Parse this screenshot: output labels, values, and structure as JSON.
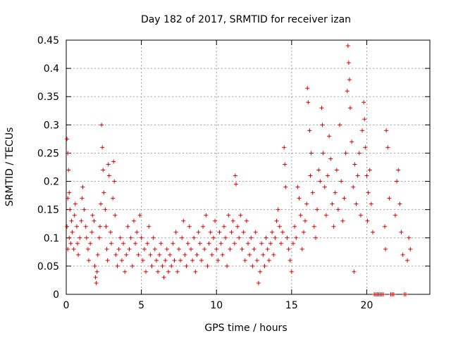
{
  "chart_data": {
    "type": "scatter",
    "title": "Day 182 of 2017, SRMTID for receiver izan",
    "xlabel": "GPS time / hours",
    "ylabel": "SRMTID / TECUs",
    "xlim": [
      0,
      24.2
    ],
    "ylim": [
      0,
      0.45
    ],
    "xticks": [
      0,
      5,
      10,
      15,
      20
    ],
    "xtick_labels": [
      "0",
      "5",
      "10",
      "15",
      "20"
    ],
    "yticks": [
      0,
      0.05,
      0.1,
      0.15,
      0.2,
      0.25,
      0.3,
      0.35,
      0.4,
      0.45
    ],
    "ytick_labels": [
      "0",
      "0.05",
      "0.1",
      "0.15",
      "0.2",
      "0.25",
      "0.3",
      "0.35",
      "0.4",
      "0.45"
    ],
    "grid": true,
    "marker": "+",
    "color": "#e00000",
    "series": [
      {
        "name": "",
        "points": [
          [
            0.05,
            0.275
          ],
          [
            0.1,
            0.25
          ],
          [
            0.15,
            0.22
          ],
          [
            0.1,
            0.17
          ],
          [
            0.2,
            0.18
          ],
          [
            0.25,
            0.15
          ],
          [
            0.05,
            0.12
          ],
          [
            0.2,
            0.1
          ],
          [
            0.3,
            0.09
          ],
          [
            0.1,
            0.08
          ],
          [
            0.35,
            0.13
          ],
          [
            0.4,
            0.11
          ],
          [
            0.5,
            0.08
          ],
          [
            0.55,
            0.14
          ],
          [
            0.6,
            0.16
          ],
          [
            0.7,
            0.12
          ],
          [
            0.75,
            0.09
          ],
          [
            0.8,
            0.07
          ],
          [
            0.9,
            0.1
          ],
          [
            1.0,
            0.13
          ],
          [
            1.05,
            0.17
          ],
          [
            1.1,
            0.19
          ],
          [
            1.2,
            0.15
          ],
          [
            1.3,
            0.12
          ],
          [
            1.35,
            0.1
          ],
          [
            1.45,
            0.08
          ],
          [
            1.5,
            0.06
          ],
          [
            1.6,
            0.09
          ],
          [
            1.7,
            0.11
          ],
          [
            1.75,
            0.14
          ],
          [
            1.85,
            0.13
          ],
          [
            1.9,
            0.05
          ],
          [
            1.95,
            0.03
          ],
          [
            2.0,
            0.02
          ],
          [
            2.05,
            0.04
          ],
          [
            2.1,
            0.07
          ],
          [
            2.2,
            0.1
          ],
          [
            2.25,
            0.12
          ],
          [
            2.3,
            0.16
          ],
          [
            2.35,
            0.3
          ],
          [
            2.4,
            0.26
          ],
          [
            2.45,
            0.22
          ],
          [
            2.5,
            0.18
          ],
          [
            2.6,
            0.15
          ],
          [
            2.65,
            0.12
          ],
          [
            2.7,
            0.08
          ],
          [
            2.75,
            0.06
          ],
          [
            2.8,
            0.23
          ],
          [
            2.85,
            0.21
          ],
          [
            2.95,
            0.11
          ],
          [
            3.0,
            0.09
          ],
          [
            3.1,
            0.17
          ],
          [
            3.15,
            0.235
          ],
          [
            3.2,
            0.2
          ],
          [
            3.25,
            0.14
          ],
          [
            3.3,
            0.07
          ],
          [
            3.4,
            0.05
          ],
          [
            3.5,
            0.08
          ],
          [
            3.6,
            0.1
          ],
          [
            3.7,
            0.06
          ],
          [
            3.8,
            0.09
          ],
          [
            3.9,
            0.04
          ],
          [
            4.0,
            0.07
          ],
          [
            4.1,
            0.12
          ],
          [
            4.2,
            0.08
          ],
          [
            4.3,
            0.1
          ],
          [
            4.4,
            0.05
          ],
          [
            4.5,
            0.13
          ],
          [
            4.6,
            0.09
          ],
          [
            4.7,
            0.11
          ],
          [
            4.8,
            0.07
          ],
          [
            4.9,
            0.14
          ],
          [
            5.0,
            0.1
          ],
          [
            5.1,
            0.06
          ],
          [
            5.2,
            0.08
          ],
          [
            5.3,
            0.04
          ],
          [
            5.4,
            0.09
          ],
          [
            5.5,
            0.12
          ],
          [
            5.6,
            0.07
          ],
          [
            5.7,
            0.05
          ],
          [
            5.8,
            0.1
          ],
          [
            5.9,
            0.08
          ],
          [
            6.0,
            0.06
          ],
          [
            6.1,
            0.04
          ],
          [
            6.2,
            0.07
          ],
          [
            6.3,
            0.09
          ],
          [
            6.4,
            0.05
          ],
          [
            6.5,
            0.03
          ],
          [
            6.6,
            0.06
          ],
          [
            6.7,
            0.08
          ],
          [
            6.8,
            0.04
          ],
          [
            6.9,
            0.07
          ],
          [
            7.0,
            0.05
          ],
          [
            7.1,
            0.09
          ],
          [
            7.2,
            0.06
          ],
          [
            7.3,
            0.11
          ],
          [
            7.4,
            0.04
          ],
          [
            7.5,
            0.08
          ],
          [
            7.6,
            0.06
          ],
          [
            7.7,
            0.1
          ],
          [
            7.8,
            0.13
          ],
          [
            7.9,
            0.07
          ],
          [
            8.0,
            0.05
          ],
          [
            8.1,
            0.09
          ],
          [
            8.2,
            0.12
          ],
          [
            8.3,
            0.08
          ],
          [
            8.4,
            0.06
          ],
          [
            8.5,
            0.1
          ],
          [
            8.6,
            0.04
          ],
          [
            8.7,
            0.07
          ],
          [
            8.8,
            0.11
          ],
          [
            8.9,
            0.09
          ],
          [
            9.0,
            0.06
          ],
          [
            9.1,
            0.12
          ],
          [
            9.2,
            0.08
          ],
          [
            9.3,
            0.14
          ],
          [
            9.4,
            0.05
          ],
          [
            9.5,
            0.09
          ],
          [
            9.6,
            0.11
          ],
          [
            9.7,
            0.07
          ],
          [
            9.8,
            0.1
          ],
          [
            9.9,
            0.13
          ],
          [
            10.0,
            0.08
          ],
          [
            10.1,
            0.06
          ],
          [
            10.2,
            0.11
          ],
          [
            10.3,
            0.09
          ],
          [
            10.4,
            0.07
          ],
          [
            10.5,
            0.12
          ],
          [
            10.6,
            0.1
          ],
          [
            10.7,
            0.05
          ],
          [
            10.8,
            0.14
          ],
          [
            10.9,
            0.08
          ],
          [
            11.0,
            0.11
          ],
          [
            11.1,
            0.13
          ],
          [
            11.2,
            0.09
          ],
          [
            11.25,
            0.21
          ],
          [
            11.3,
            0.195
          ],
          [
            11.4,
            0.12
          ],
          [
            11.5,
            0.1
          ],
          [
            11.6,
            0.14
          ],
          [
            11.7,
            0.08
          ],
          [
            11.8,
            0.11
          ],
          [
            11.9,
            0.06
          ],
          [
            12.0,
            0.13
          ],
          [
            12.1,
            0.09
          ],
          [
            12.2,
            0.07
          ],
          [
            12.3,
            0.1
          ],
          [
            12.4,
            0.05
          ],
          [
            12.5,
            0.08
          ],
          [
            12.6,
            0.11
          ],
          [
            12.7,
            0.06
          ],
          [
            12.8,
            0.02
          ],
          [
            12.9,
            0.04
          ],
          [
            13.0,
            0.09
          ],
          [
            13.1,
            0.07
          ],
          [
            13.2,
            0.05
          ],
          [
            13.3,
            0.1
          ],
          [
            13.4,
            0.08
          ],
          [
            13.5,
            0.06
          ],
          [
            13.6,
            0.09
          ],
          [
            13.7,
            0.11
          ],
          [
            13.8,
            0.07
          ],
          [
            13.9,
            0.1
          ],
          [
            14.0,
            0.13
          ],
          [
            14.1,
            0.15
          ],
          [
            14.2,
            0.12
          ],
          [
            14.3,
            0.09
          ],
          [
            14.4,
            0.11
          ],
          [
            14.5,
            0.26
          ],
          [
            14.55,
            0.23
          ],
          [
            14.6,
            0.19
          ],
          [
            14.7,
            0.1
          ],
          [
            14.8,
            0.08
          ],
          [
            14.9,
            0.06
          ],
          [
            15.0,
            0.04
          ],
          [
            15.1,
            0.09
          ],
          [
            15.2,
            0.12
          ],
          [
            15.3,
            0.1
          ],
          [
            15.4,
            0.19
          ],
          [
            15.5,
            0.17
          ],
          [
            15.6,
            0.14
          ],
          [
            15.7,
            0.08
          ],
          [
            15.8,
            0.11
          ],
          [
            15.9,
            0.13
          ],
          [
            16.0,
            0.16
          ],
          [
            16.05,
            0.365
          ],
          [
            16.1,
            0.34
          ],
          [
            16.2,
            0.29
          ],
          [
            16.25,
            0.21
          ],
          [
            16.3,
            0.25
          ],
          [
            16.4,
            0.18
          ],
          [
            16.5,
            0.12
          ],
          [
            16.6,
            0.1
          ],
          [
            16.7,
            0.15
          ],
          [
            16.8,
            0.22
          ],
          [
            16.9,
            0.2
          ],
          [
            17.0,
            0.33
          ],
          [
            17.05,
            0.3
          ],
          [
            17.1,
            0.25
          ],
          [
            17.2,
            0.19
          ],
          [
            17.3,
            0.14
          ],
          [
            17.4,
            0.21
          ],
          [
            17.5,
            0.28
          ],
          [
            17.6,
            0.24
          ],
          [
            17.7,
            0.16
          ],
          [
            17.8,
            0.12
          ],
          [
            17.9,
            0.18
          ],
          [
            18.0,
            0.22
          ],
          [
            18.1,
            0.15
          ],
          [
            18.2,
            0.3
          ],
          [
            18.3,
            0.2
          ],
          [
            18.4,
            0.13
          ],
          [
            18.5,
            0.17
          ],
          [
            18.6,
            0.25
          ],
          [
            18.7,
            0.36
          ],
          [
            18.75,
            0.44
          ],
          [
            18.8,
            0.41
          ],
          [
            18.85,
            0.38
          ],
          [
            18.9,
            0.33
          ],
          [
            19.0,
            0.27
          ],
          [
            19.1,
            0.19
          ],
          [
            19.15,
            0.04
          ],
          [
            19.2,
            0.23
          ],
          [
            19.3,
            0.16
          ],
          [
            19.4,
            0.21
          ],
          [
            19.5,
            0.25
          ],
          [
            19.6,
            0.14
          ],
          [
            19.7,
            0.29
          ],
          [
            19.8,
            0.34
          ],
          [
            19.85,
            0.31
          ],
          [
            19.9,
            0.26
          ],
          [
            20.0,
            0.21
          ],
          [
            20.05,
            0.13
          ],
          [
            20.1,
            0.18
          ],
          [
            20.2,
            0.22
          ],
          [
            20.3,
            0.16
          ],
          [
            20.4,
            0.11
          ],
          [
            20.5,
            0.0
          ],
          [
            20.6,
            0.0
          ],
          [
            20.7,
            0.0
          ],
          [
            20.8,
            0.0
          ],
          [
            20.9,
            0.0
          ],
          [
            21.0,
            0.0
          ],
          [
            21.1,
            0.0
          ],
          [
            21.2,
            0.12
          ],
          [
            21.25,
            0.08
          ],
          [
            21.3,
            0.29
          ],
          [
            21.4,
            0.26
          ],
          [
            21.5,
            0.17
          ],
          [
            21.6,
            0.0
          ],
          [
            21.7,
            0.0
          ],
          [
            21.8,
            0.0
          ],
          [
            21.9,
            0.14
          ],
          [
            22.0,
            0.2
          ],
          [
            22.1,
            0.22
          ],
          [
            22.2,
            0.16
          ],
          [
            22.3,
            0.11
          ],
          [
            22.4,
            0.07
          ],
          [
            22.5,
            0.0
          ],
          [
            22.6,
            0.0
          ],
          [
            22.7,
            0.06
          ],
          [
            22.8,
            0.1
          ],
          [
            22.9,
            0.08
          ]
        ]
      }
    ]
  }
}
